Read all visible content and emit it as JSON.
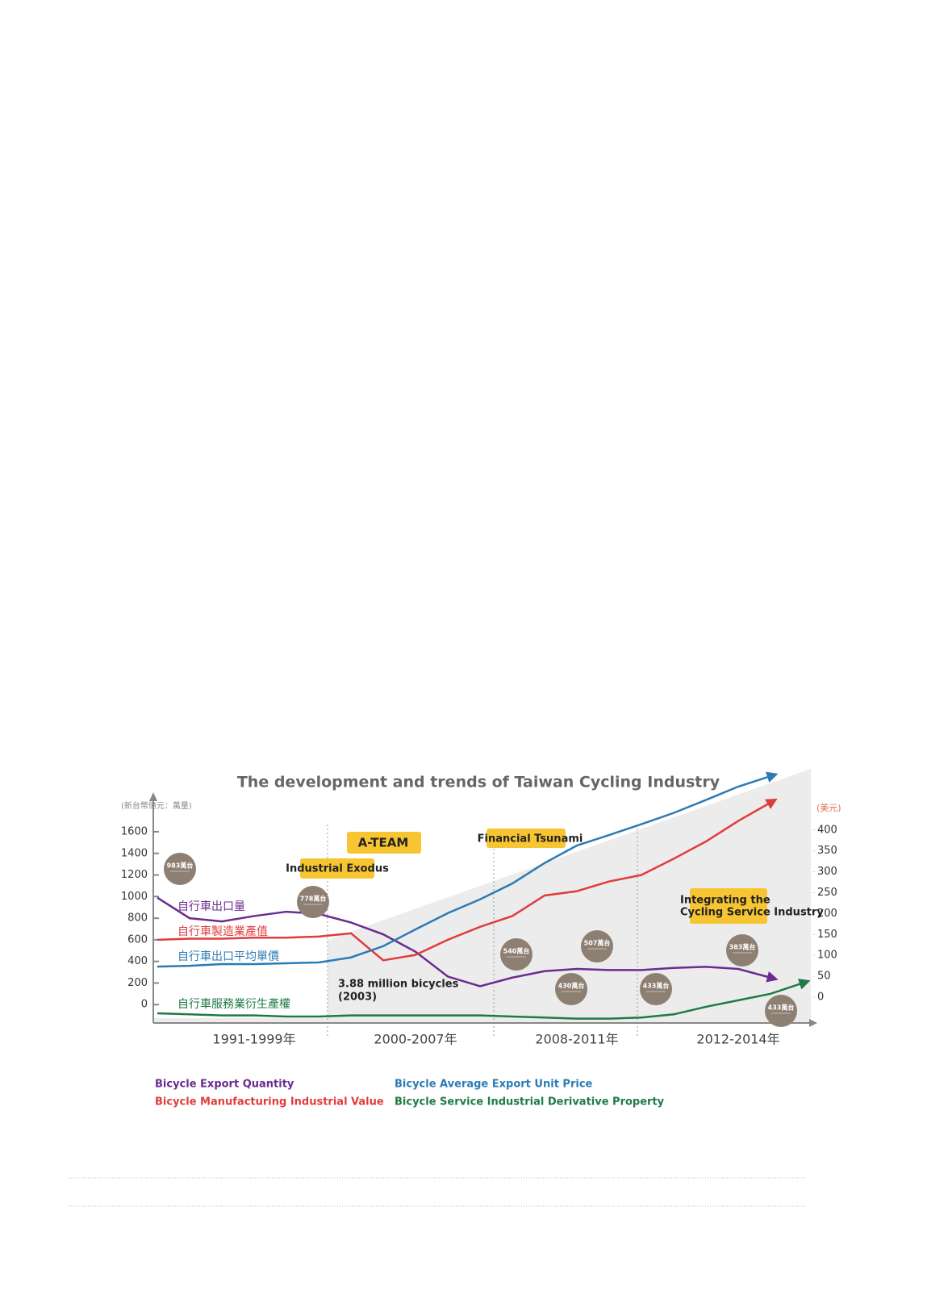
{
  "chart_data": {
    "type": "line",
    "title": "The development and trends of Taiwan Cycling Industry",
    "y_label": "(新台幣億元：萬量)",
    "y2_label": "(美元)",
    "categories": [
      null,
      null,
      null,
      "1991-1999年",
      null,
      null,
      null,
      null,
      "2000-2007年",
      null,
      null,
      null,
      null,
      "2008-2011年",
      null,
      null,
      null,
      null,
      "2012-2014年",
      null,
      null
    ],
    "ylim": [
      -170,
      2130
    ],
    "yticks": [
      0,
      200,
      400,
      600,
      800,
      1000,
      1200,
      1400,
      1600
    ],
    "y2lim": [
      -62,
      533
    ],
    "y2ticks": [
      0,
      50,
      100,
      150,
      200,
      250,
      300,
      350,
      400
    ],
    "series": [
      {
        "name": "Bicycle Export Quantity",
        "label": "自行車出口量",
        "color": "#6a2c8e",
        "values": [
          990,
          800,
          770,
          820,
          860,
          840,
          760,
          650,
          490,
          260,
          170,
          250,
          310,
          330,
          320,
          320,
          340,
          350,
          330,
          250,
          null
        ]
      },
      {
        "name": "Bicycle Manufacturing Industrial Value",
        "label": "自行車製造業產值",
        "color": "#e03c3c",
        "values": [
          600,
          610,
          610,
          620,
          620,
          630,
          660,
          410,
          460,
          600,
          720,
          820,
          1010,
          1050,
          1140,
          1200,
          1350,
          1510,
          1700,
          1870,
          null
        ]
      },
      {
        "name": "Bicycle Average Export Unit Price",
        "label": "自行車出口平均單價",
        "color": "#2c7bb6",
        "axis": "y2",
        "values": [
          73,
          75,
          79,
          79,
          81,
          83,
          95,
          122,
          162,
          201,
          234,
          272,
          321,
          363,
          388,
          414,
          441,
          472,
          504,
          529,
          null
        ]
      },
      {
        "name": "Bicycle Service Industrial Derivative Property",
        "label": "自行車服務業衍生產權",
        "color": "#1f7a45",
        "values": [
          -80,
          -90,
          -100,
          -100,
          -110,
          -110,
          -100,
          -100,
          -100,
          -100,
          -100,
          -110,
          -120,
          -130,
          -130,
          -120,
          -90,
          -20,
          40,
          100,
          200
        ]
      }
    ],
    "annotations": [
      "A-TEAM",
      "Industrial Exodus",
      "Financial Tsunami",
      "Integrating the",
      "Cycling Service Industry",
      "3.88 million bicycles",
      "(2003)"
    ],
    "bubbles": [
      "983萬台",
      "778萬台",
      "540萬台",
      "507萬台",
      "430萬台",
      "433萬台",
      "383萬台",
      "433萬台"
    ]
  }
}
